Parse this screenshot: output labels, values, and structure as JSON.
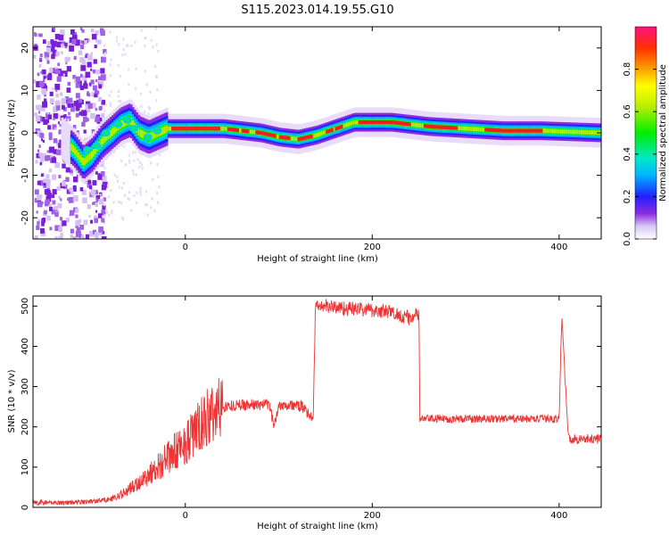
{
  "title": "S115.2023.014.19.55.G10",
  "chart_data": [
    {
      "type": "heatmap",
      "xlabel": "Height of straight line (km)",
      "ylabel": "Frequency (Hz)",
      "xlim": [
        -163,
        445
      ],
      "ylim": [
        -25,
        25
      ],
      "x_ticks": [
        0,
        200,
        400
      ],
      "y_ticks": [
        -20,
        -10,
        0,
        10,
        20
      ],
      "x_tick_labels": [
        "0",
        "200",
        "400"
      ],
      "y_tick_labels": [
        "-20",
        "-10",
        "0",
        "10",
        "20"
      ],
      "colorbar": {
        "label": "Normalized spectral amplitude",
        "range": [
          0,
          1
        ],
        "ticks": [
          0,
          0.2,
          0.4,
          0.6,
          0.8
        ],
        "tick_labels": [
          "0.0",
          "0.2",
          "0.4",
          "0.6",
          "0.8"
        ]
      },
      "ridge": {
        "x": [
          -160,
          -140,
          -120,
          -110,
          -100,
          -90,
          -80,
          -70,
          -60,
          -50,
          -40,
          -30,
          -20,
          0,
          40,
          60,
          80,
          100,
          120,
          140,
          160,
          180,
          200,
          220,
          260,
          300,
          340,
          380,
          445
        ],
        "frequency": [
          0,
          0,
          -4,
          -7,
          -5,
          -2,
          0,
          2,
          3,
          0,
          -1,
          0,
          1,
          1,
          1,
          0.5,
          0,
          -1,
          -1.5,
          -0.5,
          1,
          2.5,
          2.5,
          2.5,
          1.5,
          1,
          0.5,
          0.5,
          0
        ]
      }
    },
    {
      "type": "line",
      "xlabel": "Height of straight line (km)",
      "ylabel": "SNR (10 * v/v)",
      "xlim": [
        -163,
        445
      ],
      "ylim": [
        0,
        525
      ],
      "x_ticks": [
        0,
        200,
        400
      ],
      "y_ticks": [
        0,
        100,
        200,
        300,
        400,
        500
      ],
      "x_tick_labels": [
        "0",
        "200",
        "400"
      ],
      "y_tick_labels": [
        "0",
        "100",
        "200",
        "300",
        "400",
        "500"
      ],
      "color": "#ee3333",
      "series": [
        {
          "x": [
            -163,
            -140,
            -120,
            -100,
            -80,
            -70,
            -60,
            -50,
            -40,
            -30,
            -20,
            -10,
            0,
            10,
            20,
            30,
            40,
            60,
            80,
            90,
            95,
            100,
            110,
            125,
            135,
            137,
            139,
            142,
            150,
            170,
            200,
            220,
            240,
            250,
            251,
            255,
            300,
            350,
            400,
            402,
            403,
            405,
            410,
            445
          ],
          "y": [
            12,
            12,
            12,
            15,
            20,
            30,
            45,
            60,
            80,
            100,
            120,
            140,
            160,
            185,
            210,
            235,
            250,
            255,
            255,
            255,
            200,
            255,
            255,
            250,
            225,
            220,
            495,
            500,
            500,
            495,
            490,
            485,
            470,
            480,
            220,
            220,
            220,
            220,
            220,
            400,
            480,
            380,
            170,
            170
          ]
        }
      ]
    }
  ]
}
